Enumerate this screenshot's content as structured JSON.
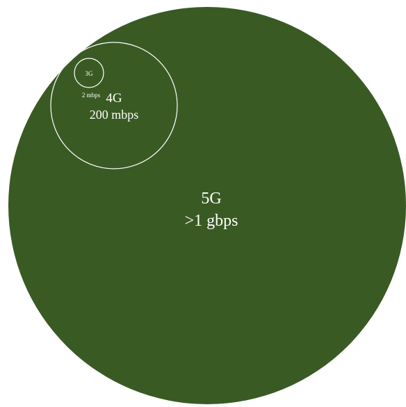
{
  "colors": {
    "background": "#ffffff",
    "fill_5g": "#3a5a24",
    "outline": "#ffffff",
    "text": "#ffffff"
  },
  "circles": {
    "g5": {
      "name": "5G",
      "speed": ">1 gbps"
    },
    "g4": {
      "name": "4G",
      "speed": "200 mbps"
    },
    "g3": {
      "name": "3G",
      "speed": "2 mbps"
    }
  }
}
